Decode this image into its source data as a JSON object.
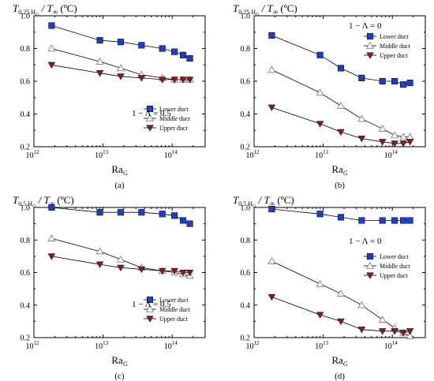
{
  "figure": {
    "x_axis_label": "Ra",
    "x_axis_label_sub": "G",
    "x_tick_labels": [
      "10",
      "12",
      "10",
      "13",
      "10",
      "14"
    ],
    "legend_labels": [
      "Lower duct",
      "Middle duct",
      "Upper duct"
    ]
  },
  "chart_data": [
    {
      "type": "line",
      "panel_label": "(a)",
      "title_prefix": "T",
      "title_sub": "0.25 H",
      "title_subsub": "G",
      "title_suffix": " / T",
      "title_inf": "∞",
      "title_unit": " (ºC)",
      "annotation": "1 − Λ = 0.5",
      "annotation_pos": "bottom-right",
      "legend_pos": "bottom-right",
      "x_scale": "log",
      "xlim": [
        1000000000000.0,
        300000000000000.0
      ],
      "ylim": [
        0.2,
        1.0
      ],
      "y_tick_labels": [
        "0.2",
        "0.4",
        "0.6",
        "0.8",
        "1.0"
      ],
      "colors": {
        "lower": "#1f3fbf",
        "middle": "#808080",
        "upper": "#8b1a1a"
      },
      "series": [
        {
          "name": "Lower duct",
          "marker": "square",
          "x": [
            1800000000000.0,
            9000000000000.0,
            18000000000000.0,
            36000000000000.0,
            72000000000000.0,
            108000000000000.0,
            144000000000000.0,
            180000000000000.0
          ],
          "y": [
            0.94,
            0.85,
            0.84,
            0.82,
            0.8,
            0.78,
            0.76,
            0.74
          ]
        },
        {
          "name": "Middle duct",
          "marker": "triangle-up",
          "x": [
            1800000000000.0,
            9000000000000.0,
            18000000000000.0,
            36000000000000.0,
            72000000000000.0,
            108000000000000.0,
            144000000000000.0,
            180000000000000.0
          ],
          "y": [
            0.8,
            0.72,
            0.68,
            0.64,
            0.62,
            0.61,
            0.61,
            0.61
          ]
        },
        {
          "name": "Upper duct",
          "marker": "triangle-down",
          "x": [
            1800000000000.0,
            9000000000000.0,
            18000000000000.0,
            36000000000000.0,
            72000000000000.0,
            108000000000000.0,
            144000000000000.0,
            180000000000000.0
          ],
          "y": [
            0.7,
            0.65,
            0.63,
            0.62,
            0.61,
            0.61,
            0.61,
            0.61
          ]
        }
      ]
    },
    {
      "type": "line",
      "panel_label": "(b)",
      "title_prefix": "T",
      "title_sub": "0.25 H",
      "title_subsub": "G",
      "title_suffix": " / T",
      "title_inf": "∞",
      "title_unit": " (ºC)",
      "annotation": "1 − Λ = 0",
      "annotation_pos": "top-right",
      "legend_pos": "top-right",
      "x_scale": "log",
      "xlim": [
        1000000000000.0,
        300000000000000.0
      ],
      "ylim": [
        0.2,
        1.0
      ],
      "y_tick_labels": [
        "0.2",
        "0.4",
        "0.6",
        "0.8",
        "1.0"
      ],
      "colors": {
        "lower": "#1f3fbf",
        "middle": "#808080",
        "upper": "#8b1a1a"
      },
      "series": [
        {
          "name": "Lower duct",
          "marker": "square",
          "x": [
            1800000000000.0,
            9000000000000.0,
            18000000000000.0,
            36000000000000.0,
            72000000000000.0,
            108000000000000.0,
            144000000000000.0,
            180000000000000.0
          ],
          "y": [
            0.88,
            0.76,
            0.68,
            0.62,
            0.6,
            0.6,
            0.58,
            0.59
          ]
        },
        {
          "name": "Middle duct",
          "marker": "triangle-up",
          "x": [
            1800000000000.0,
            9000000000000.0,
            18000000000000.0,
            36000000000000.0,
            72000000000000.0,
            108000000000000.0,
            144000000000000.0,
            180000000000000.0
          ],
          "y": [
            0.67,
            0.53,
            0.45,
            0.37,
            0.31,
            0.27,
            0.26,
            0.26
          ]
        },
        {
          "name": "Upper duct",
          "marker": "triangle-down",
          "x": [
            1800000000000.0,
            9000000000000.0,
            18000000000000.0,
            36000000000000.0,
            72000000000000.0,
            108000000000000.0,
            144000000000000.0,
            180000000000000.0
          ],
          "y": [
            0.44,
            0.34,
            0.29,
            0.25,
            0.23,
            0.22,
            0.22,
            0.23
          ]
        }
      ]
    },
    {
      "type": "line",
      "panel_label": "(c)",
      "title_prefix": "T",
      "title_sub": "0.5 H",
      "title_subsub": "G",
      "title_suffix": " / T",
      "title_inf": "∞",
      "title_unit": " (ºC)",
      "annotation": "1 − Λ = 0.5",
      "annotation_pos": "bottom-right",
      "legend_pos": "bottom-right",
      "x_scale": "log",
      "xlim": [
        1000000000000.0,
        300000000000000.0
      ],
      "ylim": [
        0.2,
        1.0
      ],
      "y_tick_labels": [
        "0.2",
        "0.4",
        "0.6",
        "0.8",
        "1.0"
      ],
      "colors": {
        "lower": "#1f3fbf",
        "middle": "#808080",
        "upper": "#8b1a1a"
      },
      "series": [
        {
          "name": "Lower duct",
          "marker": "square",
          "x": [
            1800000000000.0,
            9000000000000.0,
            18000000000000.0,
            36000000000000.0,
            72000000000000.0,
            108000000000000.0,
            144000000000000.0,
            180000000000000.0
          ],
          "y": [
            1.0,
            0.97,
            0.97,
            0.97,
            0.96,
            0.95,
            0.92,
            0.9
          ]
        },
        {
          "name": "Middle duct",
          "marker": "triangle-up",
          "x": [
            1800000000000.0,
            9000000000000.0,
            18000000000000.0,
            36000000000000.0,
            72000000000000.0,
            108000000000000.0,
            144000000000000.0,
            180000000000000.0
          ],
          "y": [
            0.81,
            0.73,
            0.68,
            0.63,
            0.61,
            0.6,
            0.59,
            0.58
          ]
        },
        {
          "name": "Upper duct",
          "marker": "triangle-down",
          "x": [
            1800000000000.0,
            9000000000000.0,
            18000000000000.0,
            36000000000000.0,
            72000000000000.0,
            108000000000000.0,
            144000000000000.0,
            180000000000000.0
          ],
          "y": [
            0.7,
            0.65,
            0.63,
            0.62,
            0.61,
            0.61,
            0.6,
            0.6
          ]
        }
      ]
    },
    {
      "type": "line",
      "panel_label": "(d)",
      "title_prefix": "T",
      "title_sub": "0.5 H",
      "title_subsub": "G",
      "title_suffix": " / T",
      "title_inf": "∞",
      "title_unit": " (ºC)",
      "annotation": "1 − Λ = 0",
      "annotation_pos": "top-right",
      "legend_pos": "right",
      "x_scale": "log",
      "xlim": [
        1000000000000.0,
        300000000000000.0
      ],
      "ylim": [
        0.2,
        1.0
      ],
      "y_tick_labels": [
        "0.2",
        "0.4",
        "0.6",
        "0.8",
        "1.0"
      ],
      "colors": {
        "lower": "#1f3fbf",
        "middle": "#808080",
        "upper": "#8b1a1a"
      },
      "series": [
        {
          "name": "Lower duct",
          "marker": "square",
          "x": [
            1800000000000.0,
            9000000000000.0,
            18000000000000.0,
            36000000000000.0,
            72000000000000.0,
            108000000000000.0,
            144000000000000.0,
            180000000000000.0
          ],
          "y": [
            0.99,
            0.96,
            0.94,
            0.92,
            0.92,
            0.92,
            0.92,
            0.92
          ]
        },
        {
          "name": "Middle duct",
          "marker": "triangle-up",
          "x": [
            1800000000000.0,
            9000000000000.0,
            18000000000000.0,
            36000000000000.0,
            72000000000000.0,
            108000000000000.0,
            144000000000000.0,
            180000000000000.0
          ],
          "y": [
            0.67,
            0.53,
            0.47,
            0.4,
            0.31,
            0.26,
            0.23,
            0.21
          ]
        },
        {
          "name": "Upper duct",
          "marker": "triangle-down",
          "x": [
            1800000000000.0,
            9000000000000.0,
            18000000000000.0,
            36000000000000.0,
            72000000000000.0,
            108000000000000.0,
            144000000000000.0,
            180000000000000.0
          ],
          "y": [
            0.45,
            0.34,
            0.3,
            0.25,
            0.24,
            0.24,
            0.23,
            0.24
          ]
        }
      ]
    }
  ]
}
